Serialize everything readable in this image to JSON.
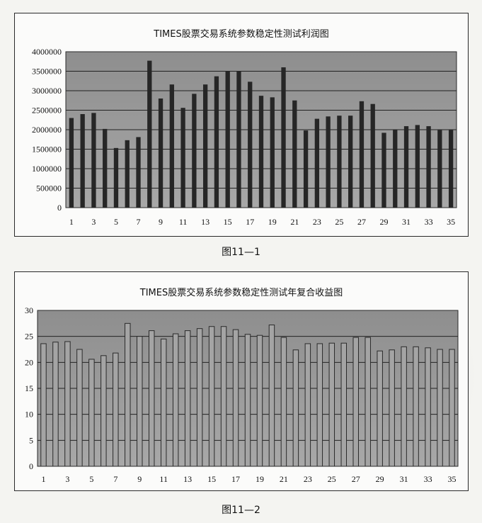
{
  "charts": [
    {
      "title": "TIMES股票交易系统参数稳定性测试利润图",
      "caption": "图11—1"
    },
    {
      "title": "TIMES股票交易系统参数稳定性测试年复合收益图",
      "caption": "图11—2"
    }
  ],
  "chart_data": [
    {
      "type": "bar",
      "title": "TIMES股票交易系统参数稳定性测试利润图",
      "xlabel": "",
      "ylabel": "",
      "categories": [
        1,
        2,
        3,
        4,
        5,
        6,
        7,
        8,
        9,
        10,
        11,
        12,
        13,
        14,
        15,
        16,
        17,
        18,
        19,
        20,
        21,
        22,
        23,
        24,
        25,
        26,
        27,
        28,
        29,
        30,
        31,
        32,
        33,
        34,
        35
      ],
      "x_tick_labels": [
        "1",
        "3",
        "5",
        "7",
        "9",
        "11",
        "13",
        "15",
        "17",
        "19",
        "21",
        "23",
        "25",
        "27",
        "29",
        "31",
        "33",
        "35"
      ],
      "values": [
        2300000,
        2400000,
        2430000,
        2020000,
        1530000,
        1730000,
        1810000,
        3770000,
        2800000,
        3160000,
        2560000,
        2920000,
        3160000,
        3370000,
        3500000,
        3500000,
        3230000,
        2870000,
        2830000,
        3600000,
        2750000,
        1980000,
        2280000,
        2340000,
        2360000,
        2360000,
        2730000,
        2660000,
        1920000,
        2000000,
        2090000,
        2120000,
        2090000,
        1990000,
        1990000
      ],
      "ylim": [
        0,
        4000000
      ],
      "yticks": [
        0,
        500000,
        1000000,
        1500000,
        2000000,
        2500000,
        3000000,
        3500000,
        4000000
      ],
      "grid": true,
      "colors": {
        "bar": "#262626",
        "plot_bg": "#9b9b9b"
      }
    },
    {
      "type": "bar",
      "title": "TIMES股票交易系统参数稳定性测试年复合收益图",
      "xlabel": "",
      "ylabel": "",
      "categories": [
        1,
        2,
        3,
        4,
        5,
        6,
        7,
        8,
        9,
        10,
        11,
        12,
        13,
        14,
        15,
        16,
        17,
        18,
        19,
        20,
        21,
        22,
        23,
        24,
        25,
        26,
        27,
        28,
        29,
        30,
        31,
        32,
        33,
        34,
        35
      ],
      "x_tick_labels": [
        "1",
        "3",
        "5",
        "7",
        "9",
        "11",
        "13",
        "15",
        "17",
        "19",
        "21",
        "23",
        "25",
        "27",
        "29",
        "31",
        "33",
        "35"
      ],
      "values": [
        23.6,
        23.9,
        24.0,
        22.5,
        20.6,
        21.3,
        21.8,
        27.5,
        25.0,
        26.1,
        24.5,
        25.5,
        26.1,
        26.5,
        26.9,
        26.9,
        26.3,
        25.4,
        25.2,
        27.2,
        24.8,
        22.4,
        23.6,
        23.6,
        23.7,
        23.7,
        24.8,
        24.8,
        22.2,
        22.4,
        23.0,
        23.0,
        22.8,
        22.5,
        22.5
      ],
      "ylim": [
        0,
        30
      ],
      "yticks": [
        0,
        5,
        10,
        15,
        20,
        25,
        30
      ],
      "grid": true,
      "colors": {
        "bar": "#a4a4a4",
        "bar_edge": "#2a2a2a",
        "plot_bg": "#9b9b9b"
      }
    }
  ]
}
